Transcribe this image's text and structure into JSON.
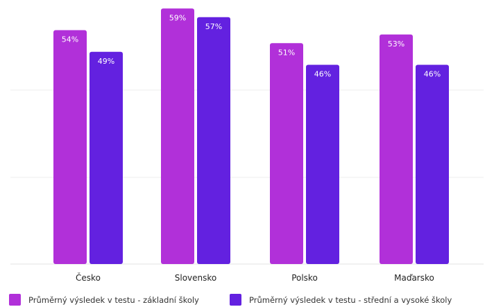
{
  "chart_data": {
    "type": "bar",
    "categories": [
      "Česko",
      "Slovensko",
      "Polsko",
      "Maďarsko"
    ],
    "series": [
      {
        "name": "Průměrný výsledek v testu - základní školy",
        "values": [
          54,
          59,
          51,
          53
        ],
        "labels": [
          "54%",
          "59%",
          "51%",
          "53%"
        ],
        "color": "#b130d9"
      },
      {
        "name": "Průměrný výsledek v testu - střední a vysoké školy",
        "values": [
          49,
          57,
          46,
          46
        ],
        "labels": [
          "49%",
          "57%",
          "46%",
          "46%"
        ],
        "color": "#6321e0"
      }
    ],
    "ylim": [
      0,
      60
    ],
    "grid": true,
    "legend_position": "bottom-left",
    "title": "",
    "xlabel": "",
    "ylabel": ""
  }
}
